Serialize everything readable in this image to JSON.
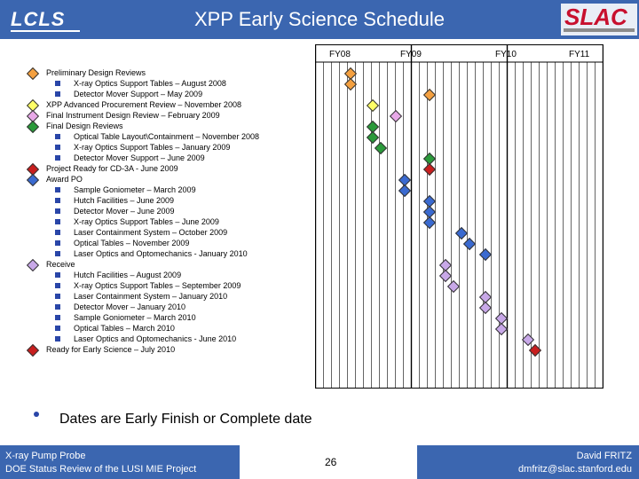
{
  "header": {
    "title": "XPP Early Science Schedule",
    "left_logo": "LCLS",
    "right_logo": "SLAC"
  },
  "timeline": {
    "years": [
      "FY08",
      "FY09",
      "FY10",
      "FY11"
    ]
  },
  "milestones": [
    {
      "text": "Preliminary Design Reviews",
      "kind": "diamond",
      "color": "#f4a040",
      "indent": 0
    },
    {
      "text": "X-ray Optics Support Tables – August 2008",
      "kind": "bullet",
      "indent": 1
    },
    {
      "text": "Detector Mover Support – May 2009",
      "kind": "bullet",
      "indent": 1
    },
    {
      "text": "XPP Advanced Procurement Review – November 2008",
      "kind": "diamond",
      "color": "#ffff66",
      "indent": 0
    },
    {
      "text": "Final Instrument Design Review – February 2009",
      "kind": "diamond",
      "color": "#e8a8e8",
      "indent": 0
    },
    {
      "text": "Final Design Reviews",
      "kind": "diamond",
      "color": "#2a9a3a",
      "indent": 0
    },
    {
      "text": "Optical Table Layout\\Containment – November 2008",
      "kind": "bullet",
      "indent": 1
    },
    {
      "text": "X-ray Optics Support Tables – January 2009",
      "kind": "bullet",
      "indent": 1
    },
    {
      "text": "Detector Mover Support – June 2009",
      "kind": "bullet",
      "indent": 1
    },
    {
      "text": "Project Ready for CD-3A - June 2009",
      "kind": "diamond",
      "color": "#c81e1e",
      "indent": 0
    },
    {
      "text": "Award PO",
      "kind": "diamond",
      "color": "#3a6ad0",
      "indent": 0
    },
    {
      "text": "Sample Goniometer – March 2009",
      "kind": "bullet",
      "indent": 1
    },
    {
      "text": "Hutch Facilities – June 2009",
      "kind": "bullet",
      "indent": 1
    },
    {
      "text": "Detector Mover – June 2009",
      "kind": "bullet",
      "indent": 1
    },
    {
      "text": "X-ray Optics Support Tables – June 2009",
      "kind": "bullet",
      "indent": 1
    },
    {
      "text": "Laser Containment System – October 2009",
      "kind": "bullet",
      "indent": 1
    },
    {
      "text": "Optical Tables – November 2009",
      "kind": "bullet",
      "indent": 1
    },
    {
      "text": "Laser Optics and Optomechanics - January 2010",
      "kind": "bullet",
      "indent": 1
    },
    {
      "text": "Receive",
      "kind": "diamond",
      "color": "#c8a8e8",
      "indent": 0
    },
    {
      "text": "Hutch Facilities – August 2009",
      "kind": "bullet",
      "indent": 1
    },
    {
      "text": "X-ray Optics Support Tables – September 2009",
      "kind": "bullet",
      "indent": 1
    },
    {
      "text": "Laser Containment System – January 2010",
      "kind": "bullet",
      "indent": 1
    },
    {
      "text": "Detector Mover – January 2010",
      "kind": "bullet",
      "indent": 1
    },
    {
      "text": "Sample Goniometer – March 2010",
      "kind": "bullet",
      "indent": 1
    },
    {
      "text": "Optical Tables – March 2010",
      "kind": "bullet",
      "indent": 1
    },
    {
      "text": "Laser Optics and Optomechanics - June 2010",
      "kind": "bullet",
      "indent": 1
    },
    {
      "text": "Ready for Early Science – July 2010",
      "kind": "diamond",
      "color": "#c81e1e",
      "indent": 0
    }
  ],
  "marker_colors": {
    "orange": "#f4a040",
    "yellow": "#ffff66",
    "pink": "#e8a8e8",
    "green": "#2a9a3a",
    "red": "#c81e1e",
    "blue": "#3a6ad0",
    "lavender": "#c8a8e8"
  },
  "note": "Dates are Early Finish or Complete date",
  "footer": {
    "left_line1": "X-ray Pump Probe",
    "left_line2": "DOE Status Review of the LUSI MIE Project",
    "page": "26",
    "right_line1": "David FRITZ",
    "right_line2": "dmfritz@slac.stanford.edu"
  }
}
